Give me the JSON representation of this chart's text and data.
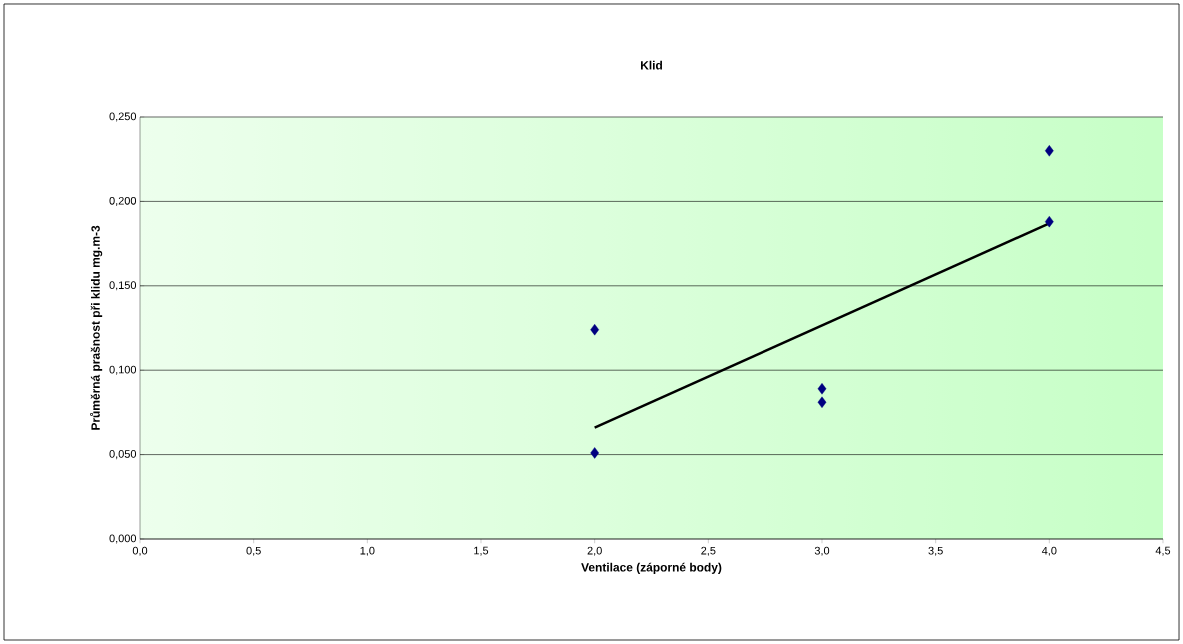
{
  "chart_data": {
    "type": "scatter",
    "title": "Klid",
    "xlabel": "Ventilace (záporné body)",
    "ylabel": "Průměrná prašnost při klidu mg.m-3",
    "xlim": [
      0,
      4.5
    ],
    "xticks": [
      {
        "value": 0,
        "label": "0,0"
      },
      {
        "value": 0.5,
        "label": "0,5"
      },
      {
        "value": 1,
        "label": "1,0"
      },
      {
        "value": 1.5,
        "label": "1,5"
      },
      {
        "value": 2,
        "label": "2,0"
      },
      {
        "value": 2.5,
        "label": "2,5"
      },
      {
        "value": 3,
        "label": "3,0"
      },
      {
        "value": 3.5,
        "label": "3,5"
      },
      {
        "value": 4,
        "label": "4,0"
      },
      {
        "value": 4.5,
        "label": "4,5"
      }
    ],
    "ylim": [
      0,
      0.25
    ],
    "yticks": [
      {
        "value": 0,
        "label": "0,000"
      },
      {
        "value": 0.05,
        "label": "0,050"
      },
      {
        "value": 0.1,
        "label": "0,100"
      },
      {
        "value": 0.15,
        "label": "0,150"
      },
      {
        "value": 0.2,
        "label": "0,200"
      },
      {
        "value": 0.25,
        "label": "0,250"
      }
    ],
    "grid": "y",
    "series": [
      {
        "marker": "diamond",
        "color": "#000080",
        "x": [
          2,
          2,
          3,
          3,
          4,
          4
        ],
        "values": [
          0.124,
          0.051,
          0.089,
          0.081,
          0.23,
          0.188
        ]
      },
      {
        "type": "line",
        "marker": "none",
        "color": "#000000",
        "x": [
          2,
          4
        ],
        "values": [
          0.066,
          0.187
        ]
      }
    ]
  }
}
